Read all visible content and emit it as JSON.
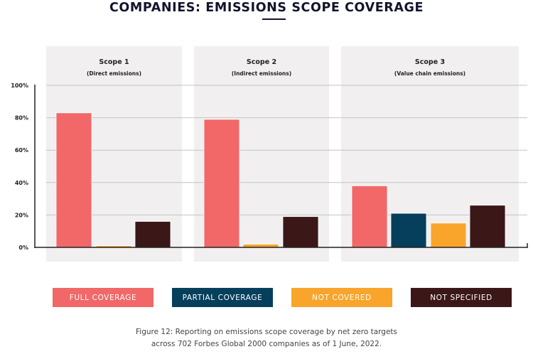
{
  "chart_data": {
    "type": "bar",
    "title": "COMPANIES: EMISSIONS SCOPE COVERAGE",
    "categories": [
      {
        "label": "Scope 1",
        "sublabel": "(Direct emissions)"
      },
      {
        "label": "Scope 2",
        "sublabel": "(Indirect emissions)"
      },
      {
        "label": "Scope 3",
        "sublabel": "(Value chain emissions)"
      }
    ],
    "series": [
      {
        "name": "FULL COVERAGE",
        "color": "#f26868",
        "values": [
          83,
          79,
          38
        ]
      },
      {
        "name": "PARTIAL COVERAGE",
        "color": "#053f5c",
        "values": [
          null,
          null,
          21
        ]
      },
      {
        "name": "NOT COVERED",
        "color": "#f9a42a",
        "values": [
          1,
          2,
          15
        ]
      },
      {
        "name": "NOT SPECIFIED",
        "color": "#3b1717",
        "values": [
          16,
          19,
          26
        ]
      }
    ],
    "ylim": [
      0,
      100
    ],
    "yticks": [
      "0%",
      "20%",
      "40%",
      "60%",
      "80%",
      "100%"
    ],
    "grid": true,
    "legend_placement": "bottom",
    "caption_lines": [
      "Figure 12: Reporting on emissions scope coverage by net zero targets",
      "across 702 Forbes Global 2000 companies as of 1 June, 2022."
    ]
  }
}
